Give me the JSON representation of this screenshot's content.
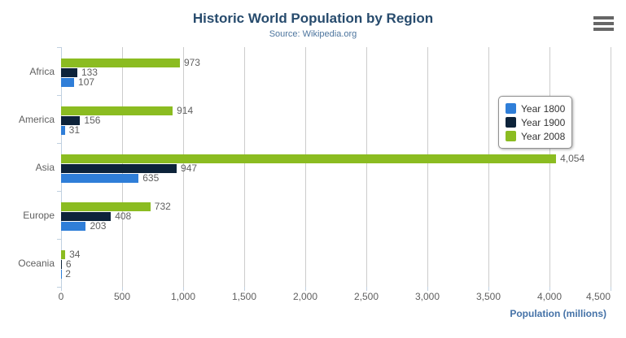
{
  "chart": {
    "title": "Historic World Population by Region",
    "subtitle": "Source: Wikipedia.org",
    "xlabel": "Population (millions)"
  },
  "icons": {
    "context_menu": "hamburger-menu"
  },
  "colors": {
    "title": "#274b6d",
    "subtitle": "#4d759e",
    "axis_title": "#4572a7",
    "axis_labels": "#606060",
    "data_labels": "#606060",
    "gridline": "#cccccc",
    "axis_line": "#c0d0e0",
    "legend_text": "#333333",
    "menu_icon": "#666666"
  },
  "chart_data": {
    "type": "bar",
    "orientation": "horizontal",
    "title": "Historic World Population by Region",
    "subtitle": "Source: Wikipedia.org",
    "xlabel": "Population (millions)",
    "categories": [
      "Africa",
      "America",
      "Asia",
      "Europe",
      "Oceania"
    ],
    "series": [
      {
        "name": "Year 1800",
        "color": "#2f7ed8",
        "values": [
          107,
          31,
          635,
          203,
          2
        ]
      },
      {
        "name": "Year 1900",
        "color": "#0d233a",
        "values": [
          133,
          156,
          947,
          408,
          6
        ]
      },
      {
        "name": "Year 2008",
        "color": "#8bbc21",
        "values": [
          973,
          914,
          4054,
          732,
          34
        ]
      }
    ],
    "bar_display_order": "last-series-on-top",
    "data_labels": true,
    "xlim": [
      0,
      4500
    ],
    "xticks": [
      0,
      500,
      1000,
      1500,
      2000,
      2500,
      3000,
      3500,
      4000,
      4500
    ],
    "grid": "vertical",
    "legend_position": "right-middle"
  }
}
